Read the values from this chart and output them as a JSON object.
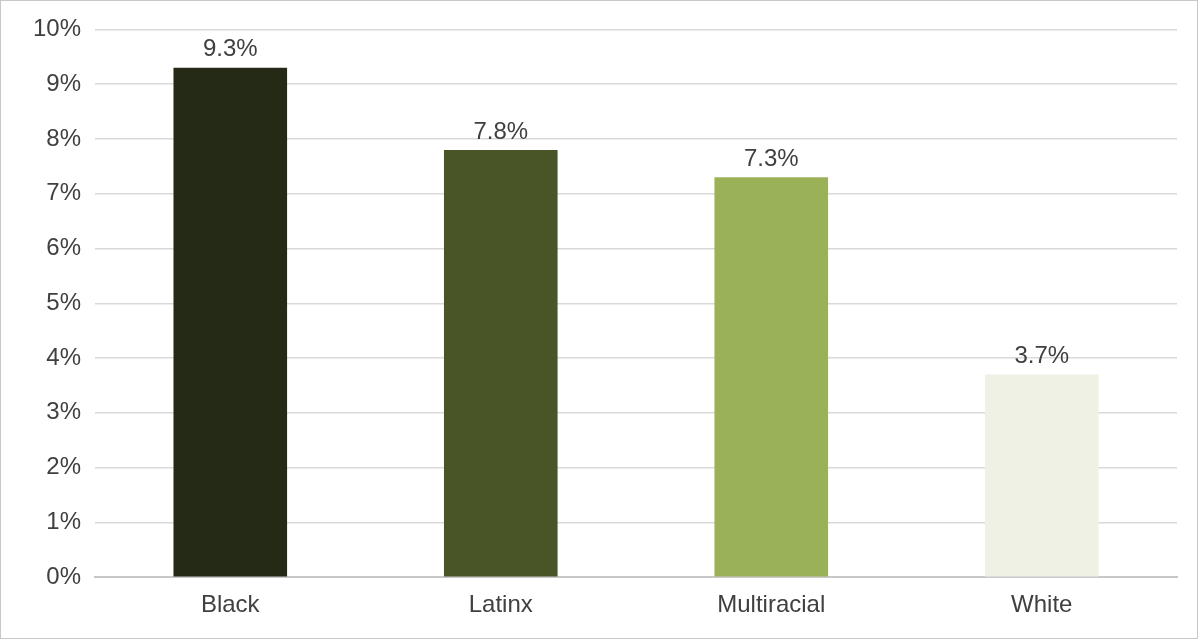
{
  "chart_data": {
    "type": "bar",
    "categories": [
      "Black",
      "Latinx",
      "Multiracial",
      "White"
    ],
    "values": [
      9.3,
      7.8,
      7.3,
      3.7
    ],
    "colors": [
      "#252a16",
      "#4a5527",
      "#9bb157",
      "#eef1e3"
    ],
    "value_labels": [
      "9.3%",
      "7.8%",
      "7.3%",
      "3.7%"
    ],
    "ylim": [
      0,
      10
    ],
    "yticks": [
      {
        "value": 0,
        "label": "0%"
      },
      {
        "value": 1,
        "label": "1%"
      },
      {
        "value": 2,
        "label": "2%"
      },
      {
        "value": 3,
        "label": "3%"
      },
      {
        "value": 4,
        "label": "4%"
      },
      {
        "value": 5,
        "label": "5%"
      },
      {
        "value": 6,
        "label": "6%"
      },
      {
        "value": 7,
        "label": "7%"
      },
      {
        "value": 8,
        "label": "8%"
      },
      {
        "value": 9,
        "label": "9%"
      },
      {
        "value": 10,
        "label": "10%"
      }
    ],
    "grid": "y",
    "legend": false
  }
}
